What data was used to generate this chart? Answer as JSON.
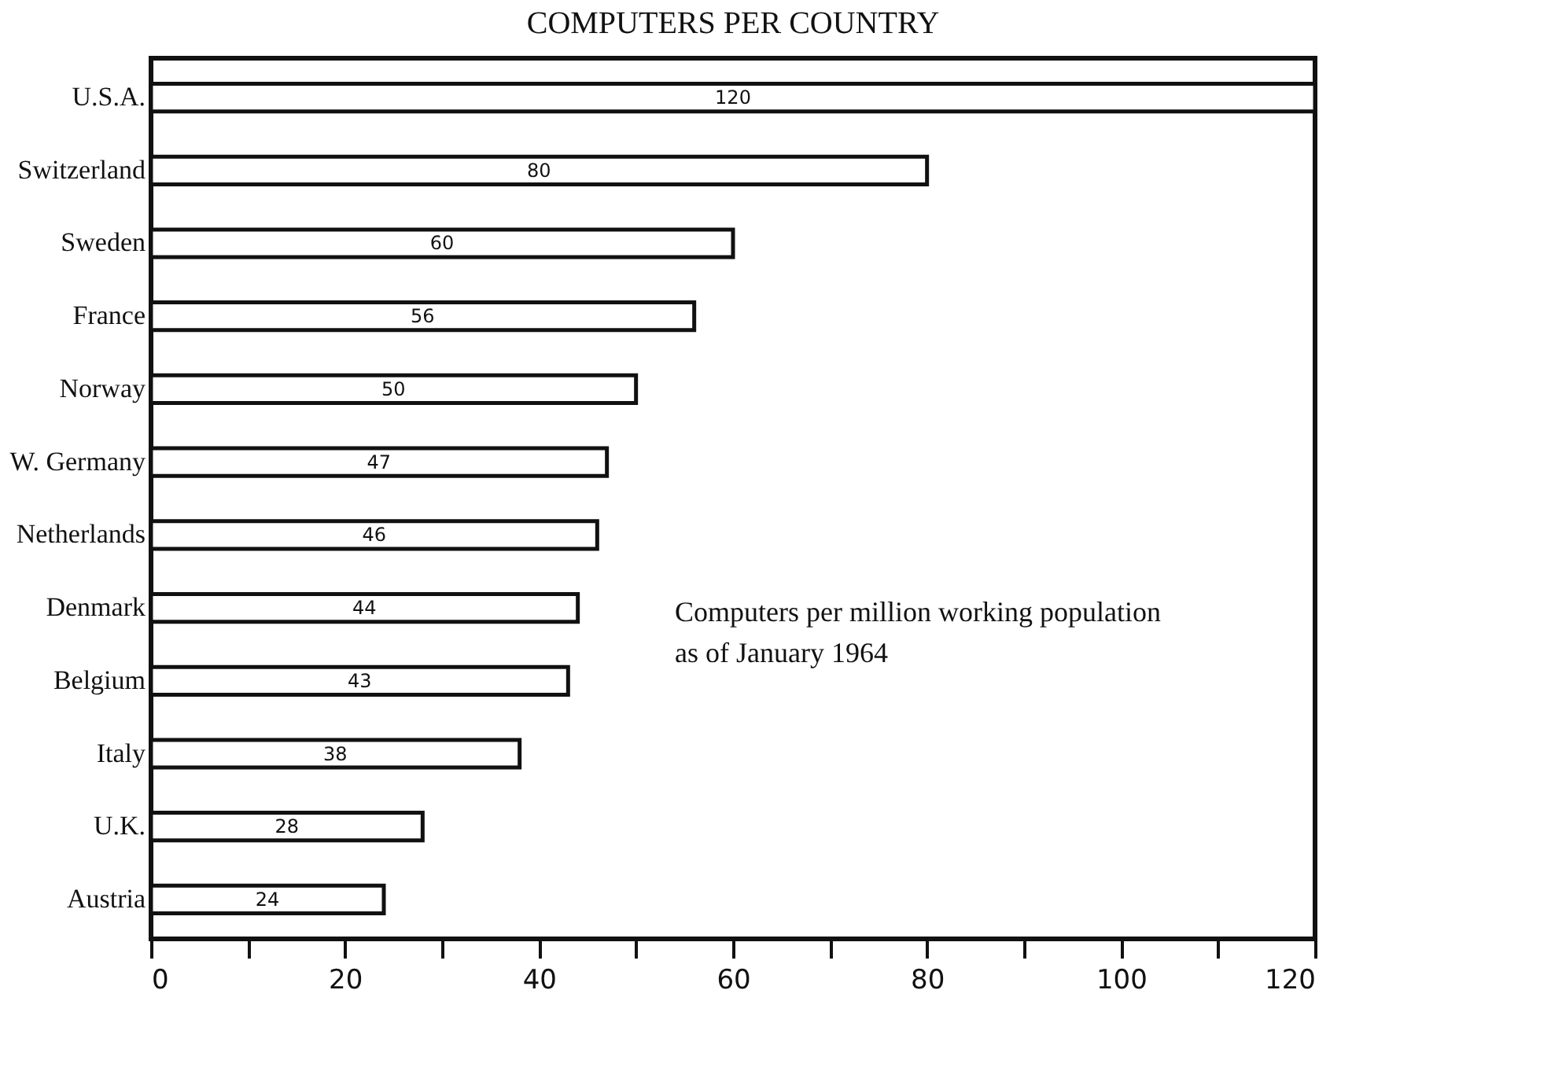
{
  "chart_data": {
    "type": "bar",
    "orientation": "horizontal",
    "title": "COMPUTERS PER COUNTRY",
    "categories": [
      "U.S.A.",
      "Switzerland",
      "Sweden",
      "France",
      "Norway",
      "W. Germany",
      "Netherlands",
      "Denmark",
      "Belgium",
      "Italy",
      "U.K.",
      "Austria"
    ],
    "values": [
      120,
      80,
      60,
      56,
      50,
      47,
      46,
      44,
      43,
      38,
      28,
      24
    ],
    "color": "#ffffff",
    "data_labels": true,
    "xlim": [
      0,
      120
    ],
    "xticks": [
      0,
      {
        "value": 10,
        "label": null
      },
      20,
      {
        "value": 30,
        "label": null
      },
      40,
      {
        "value": 50,
        "label": null
      },
      60,
      {
        "value": 70,
        "label": null
      },
      80,
      {
        "value": 90,
        "label": null
      },
      100,
      {
        "value": 110,
        "label": null
      },
      120
    ],
    "grid": false,
    "annotations": [
      "Computers per million working population as of January 1964"
    ]
  }
}
